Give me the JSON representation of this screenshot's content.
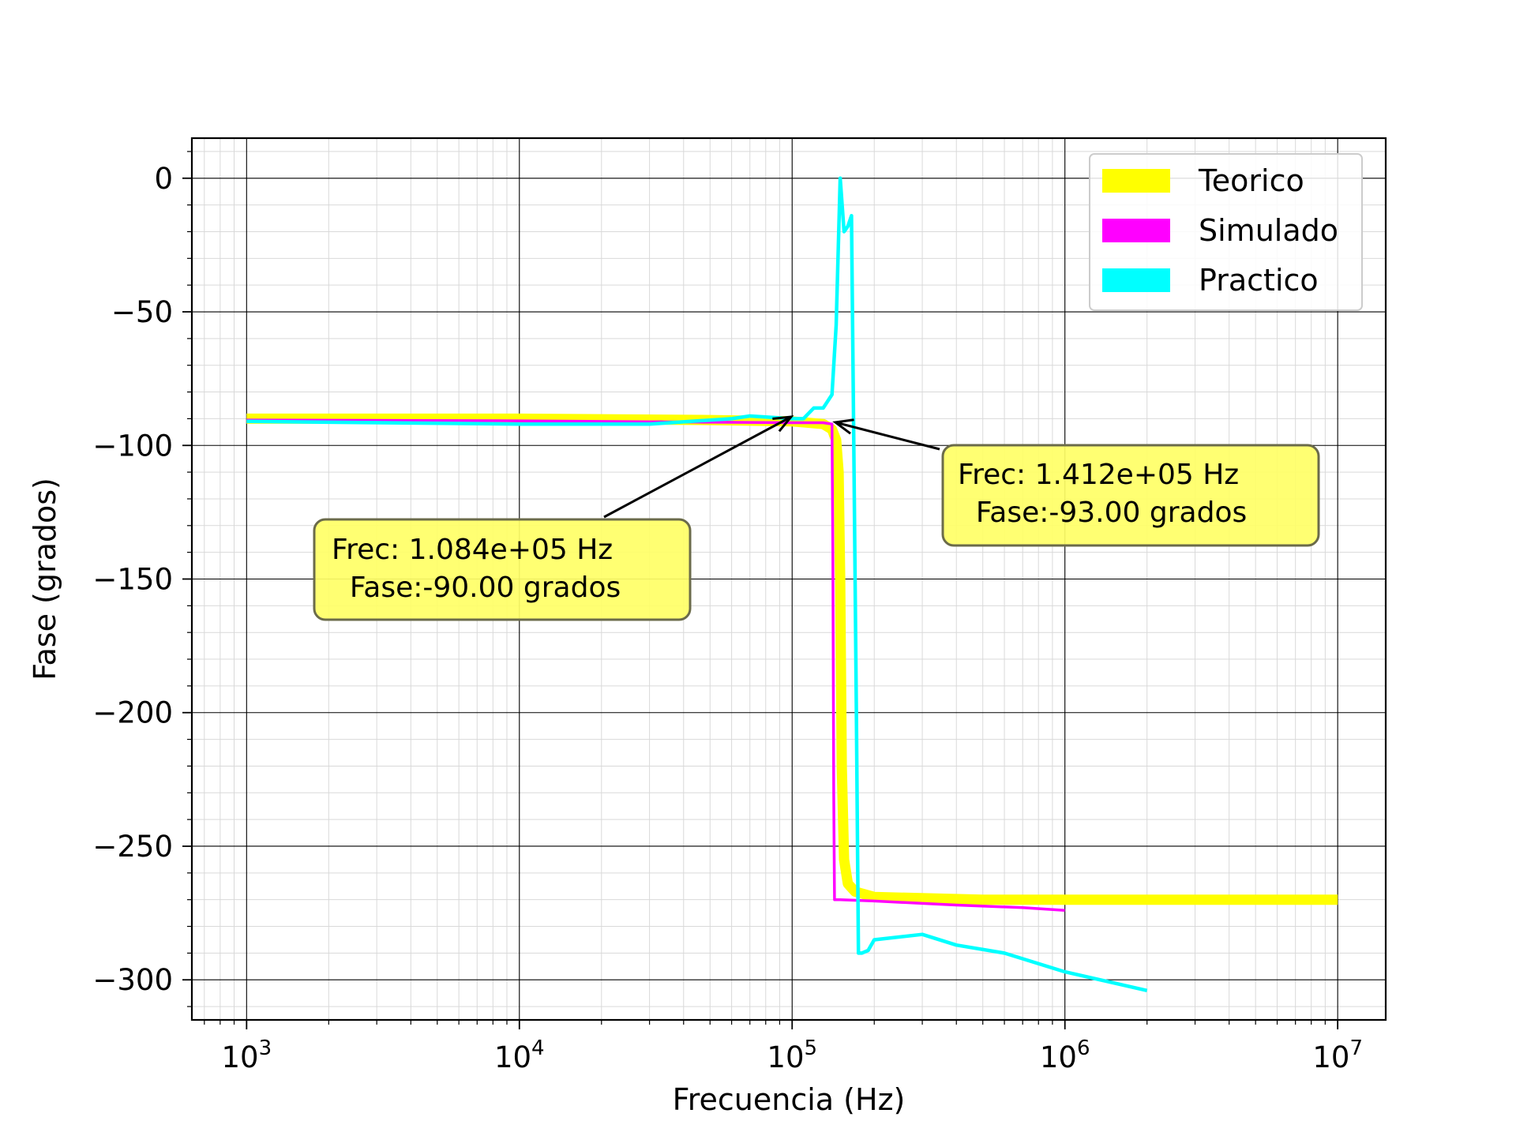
{
  "chart_data": {
    "type": "line",
    "xlabel": "Frecuencia (Hz)",
    "ylabel": "Fase (grados)",
    "xscale": "log",
    "xlim": [
      630,
      15000000
    ],
    "ylim": [
      -315,
      15
    ],
    "grid": true,
    "legend_position": "top-right",
    "x_ticks": [
      1000,
      10000,
      100000,
      1000000,
      10000000
    ],
    "x_tick_labels": [
      {
        "base": "10",
        "exp": "3"
      },
      {
        "base": "10",
        "exp": "4"
      },
      {
        "base": "10",
        "exp": "5"
      },
      {
        "base": "10",
        "exp": "6"
      },
      {
        "base": "10",
        "exp": "7"
      }
    ],
    "y_ticks": [
      0,
      -50,
      -100,
      -150,
      -200,
      -250,
      -300
    ],
    "y_tick_labels": [
      "0",
      "−50",
      "−100",
      "−150",
      "−200",
      "−250",
      "−300"
    ],
    "series": [
      {
        "name": "Teorico",
        "color": "#ffff00",
        "x": [
          1000,
          10000,
          50000,
          100000,
          130000,
          140000,
          145000,
          148000,
          150000,
          152000,
          155000,
          160000,
          170000,
          200000,
          500000,
          1000000,
          10000000
        ],
        "y": [
          -90,
          -90,
          -90.5,
          -91,
          -92,
          -94,
          -98,
          -110,
          -150,
          -220,
          -255,
          -264,
          -267,
          -269,
          -270,
          -270,
          -270
        ]
      },
      {
        "name": "Simulado",
        "color": "#ff00ff",
        "x": [
          1000,
          10000,
          100000,
          130000,
          140000,
          141000,
          142000,
          143000,
          150000,
          200000,
          400000,
          700000,
          1000000
        ],
        "y": [
          -90.5,
          -90.8,
          -91.5,
          -91.5,
          -92,
          -140,
          -230,
          -270,
          -270,
          -270.5,
          -272,
          -273,
          -274
        ]
      },
      {
        "name": "Practico",
        "color": "#00ffff",
        "x": [
          1000,
          10000,
          30000,
          60000,
          70000,
          100000,
          110000,
          120000,
          130000,
          140000,
          145000,
          150000,
          155000,
          160000,
          165000,
          168000,
          172000,
          175000,
          180000,
          190000,
          200000,
          300000,
          400000,
          600000,
          1000000,
          2000000
        ],
        "y": [
          -91,
          -92,
          -92,
          -90,
          -89,
          -90,
          -90,
          -86,
          -86,
          -81,
          -55,
          0,
          -20,
          -18,
          -14,
          -93,
          -200,
          -290,
          -290,
          -289,
          -285,
          -283,
          -287,
          -290,
          -297,
          -304
        ]
      }
    ],
    "annotations": [
      {
        "lines": [
          "Frec: 1.084e+05 Hz",
          "  Fase:-90.00 grados"
        ],
        "point": [
          108400,
          -90
        ],
        "box_fill": "#ffff66"
      },
      {
        "lines": [
          "Frec: 1.412e+05 Hz",
          "  Fase:-93.00 grados"
        ],
        "point": [
          141200,
          -93
        ],
        "box_fill": "#ffff66"
      }
    ]
  }
}
